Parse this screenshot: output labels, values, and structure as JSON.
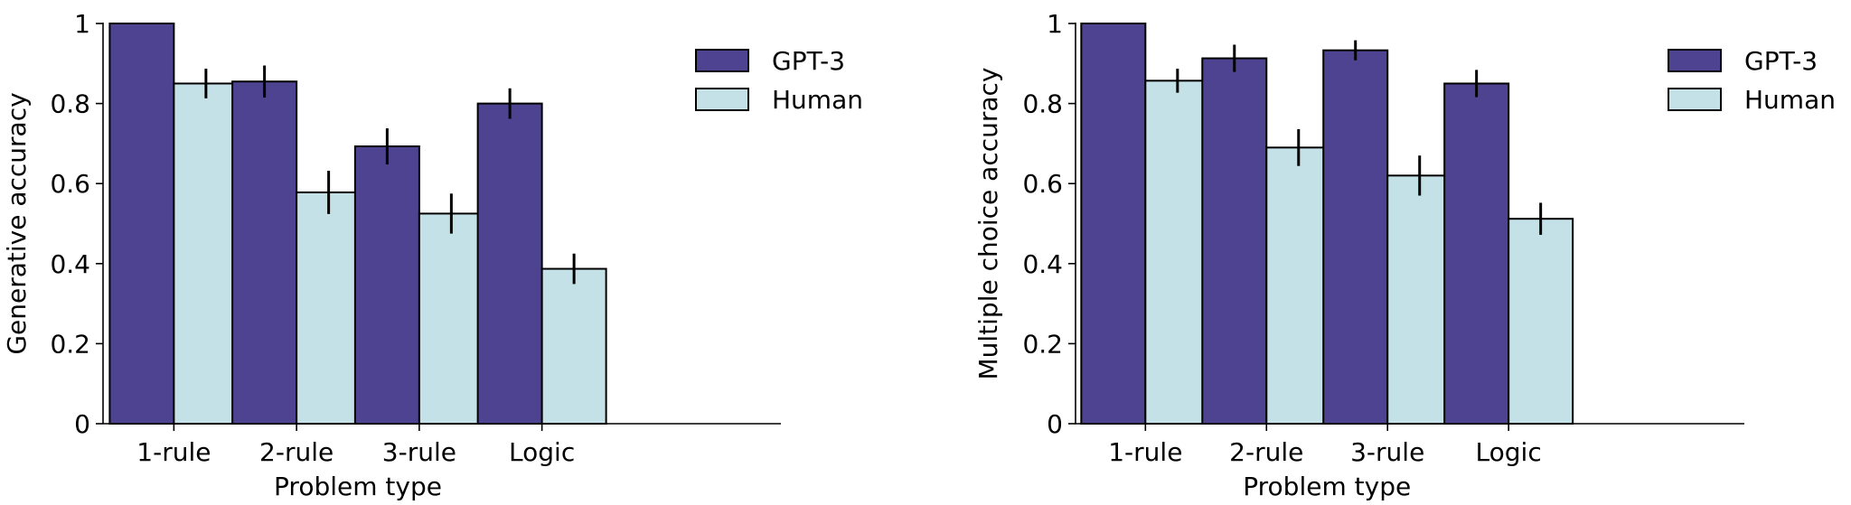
{
  "chart_data": [
    {
      "type": "bar",
      "title": "",
      "xlabel": "Problem type",
      "ylabel": "Generative accuracy",
      "ylim": [
        0,
        1
      ],
      "yticks": [
        "0",
        "0.2",
        "0.4",
        "0.6",
        "0.8",
        "1"
      ],
      "categories": [
        "1-rule",
        "2-rule",
        "3-rule",
        "Logic"
      ],
      "grid": false,
      "legend_position": "top-right",
      "series": [
        {
          "name": "GPT-3",
          "color": "#4e4390",
          "values": [
            1.0,
            0.855,
            0.693,
            0.8
          ],
          "errors": [
            0.0,
            0.04,
            0.045,
            0.038
          ]
        },
        {
          "name": "Human",
          "color": "#c4e1e8",
          "values": [
            0.85,
            0.578,
            0.525,
            0.387
          ],
          "errors": [
            0.037,
            0.054,
            0.05,
            0.038
          ]
        }
      ]
    },
    {
      "type": "bar",
      "title": "",
      "xlabel": "Problem type",
      "ylabel": "Multiple choice accuracy",
      "ylim": [
        0,
        1
      ],
      "yticks": [
        "0",
        "0.2",
        "0.4",
        "0.6",
        "0.8",
        "1"
      ],
      "categories": [
        "1-rule",
        "2-rule",
        "3-rule",
        "Logic"
      ],
      "grid": false,
      "legend_position": "top-right",
      "series": [
        {
          "name": "GPT-3",
          "color": "#4e4390",
          "values": [
            1.0,
            0.913,
            0.933,
            0.85
          ],
          "errors": [
            0.0,
            0.034,
            0.025,
            0.034
          ]
        },
        {
          "name": "Human",
          "color": "#c4e1e8",
          "values": [
            0.857,
            0.69,
            0.62,
            0.512
          ],
          "errors": [
            0.03,
            0.046,
            0.05,
            0.04
          ]
        }
      ]
    }
  ]
}
